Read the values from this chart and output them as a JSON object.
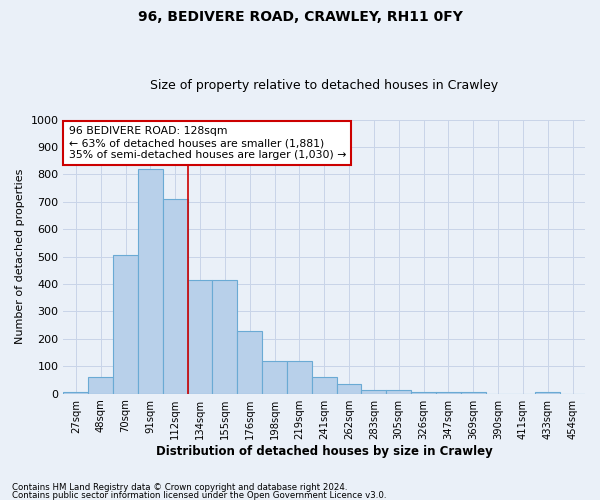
{
  "title": "96, BEDIVERE ROAD, CRAWLEY, RH11 0FY",
  "subtitle": "Size of property relative to detached houses in Crawley",
  "xlabel": "Distribution of detached houses by size in Crawley",
  "ylabel": "Number of detached properties",
  "footnote1": "Contains HM Land Registry data © Crown copyright and database right 2024.",
  "footnote2": "Contains public sector information licensed under the Open Government Licence v3.0.",
  "bin_labels": [
    "27sqm",
    "48sqm",
    "70sqm",
    "91sqm",
    "112sqm",
    "134sqm",
    "155sqm",
    "176sqm",
    "198sqm",
    "219sqm",
    "241sqm",
    "262sqm",
    "283sqm",
    "305sqm",
    "326sqm",
    "347sqm",
    "369sqm",
    "390sqm",
    "411sqm",
    "433sqm",
    "454sqm"
  ],
  "bar_heights": [
    5,
    60,
    505,
    820,
    710,
    415,
    415,
    230,
    120,
    120,
    60,
    35,
    15,
    15,
    5,
    5,
    5,
    0,
    0,
    5,
    0
  ],
  "bar_color": "#b8d0ea",
  "bar_edgecolor": "#6aaad4",
  "grid_color": "#c8d4e8",
  "background_color": "#eaf0f8",
  "vline_color": "#cc0000",
  "vline_pos": 4.5,
  "annotation_text": "96 BEDIVERE ROAD: 128sqm\n← 63% of detached houses are smaller (1,881)\n35% of semi-detached houses are larger (1,030) →",
  "annotation_box_color": "white",
  "annotation_box_edgecolor": "#cc0000",
  "ylim": [
    0,
    1000
  ],
  "yticks": [
    0,
    100,
    200,
    300,
    400,
    500,
    600,
    700,
    800,
    900,
    1000
  ]
}
